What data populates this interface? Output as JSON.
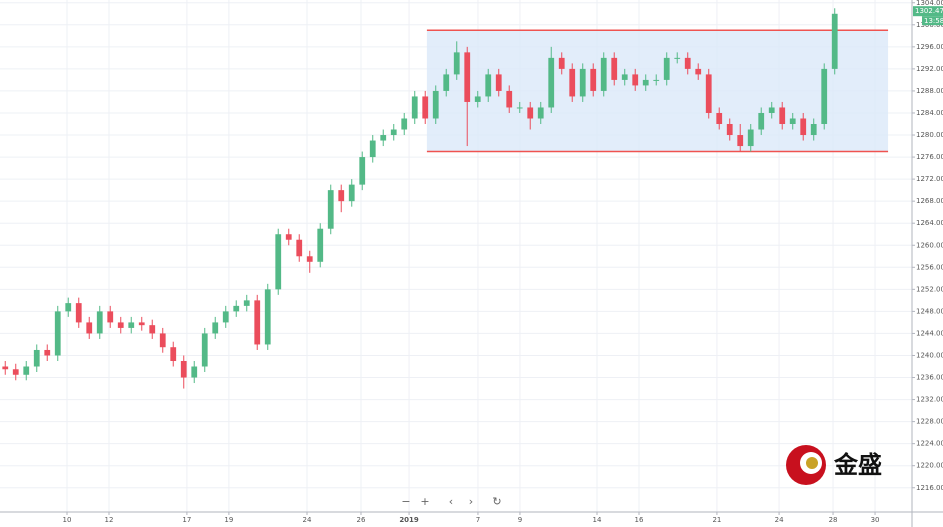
{
  "chart_data": {
    "type": "candlestick",
    "x": [
      0.25,
      0.75,
      1.25,
      1.75,
      2.25,
      2.75,
      3.25,
      3.75,
      4.25,
      4.75,
      5.25,
      5.75,
      6.25,
      6.75,
      7.25,
      7.75,
      8.25,
      8.75,
      9.25,
      9.75,
      10.25,
      10.75,
      11.25,
      11.75,
      12.25,
      12.75,
      13.25,
      13.75,
      14.25,
      14.75,
      15.25,
      15.75,
      16.25,
      16.75,
      17.25,
      17.75,
      18.25,
      18.75,
      19.25,
      19.75,
      20.25,
      20.75,
      21.25,
      21.75,
      22.25,
      22.75,
      23.25,
      23.75,
      24.25,
      24.75,
      25.25,
      25.75,
      26.25,
      26.75,
      27.25,
      27.75,
      28.25,
      28.75,
      29.25,
      29.75,
      30.25,
      30.75,
      31.25,
      31.75,
      32.25,
      32.75,
      33.25,
      33.75,
      34.25,
      34.75,
      35.25,
      35.75,
      36.25,
      36.75,
      37.25,
      37.75,
      38.25,
      38.75,
      39.25,
      39.75
    ],
    "open": [
      1238,
      1237.5,
      1236.5,
      1238,
      1241,
      1240,
      1248,
      1249.5,
      1246,
      1244,
      1248,
      1246,
      1245,
      1246,
      1245.5,
      1244,
      1241.5,
      1239,
      1236,
      1238,
      1244,
      1246,
      1248,
      1249,
      1250,
      1242,
      1252,
      1262,
      1261,
      1258,
      1257,
      1263,
      1270,
      1268,
      1271,
      1276,
      1279,
      1280,
      1281,
      1283,
      1287,
      1283,
      1288,
      1291,
      1295,
      1286,
      1287,
      1291,
      1288,
      1285,
      1285,
      1283,
      1285,
      1294,
      1292,
      1287,
      1292,
      1288,
      1294,
      1290,
      1291,
      1289,
      1290,
      1290,
      1294,
      1294,
      1292,
      1291,
      1284,
      1282,
      1280,
      1278,
      1281,
      1284,
      1285,
      1282,
      1283,
      1280,
      1282,
      1292
    ],
    "high": [
      1239,
      1238.5,
      1239,
      1242,
      1242,
      1249,
      1250.5,
      1250.5,
      1247,
      1249,
      1249,
      1247,
      1247,
      1247,
      1246.5,
      1245,
      1242.5,
      1240,
      1239,
      1245,
      1247,
      1249,
      1250,
      1251,
      1251,
      1253,
      1263,
      1263,
      1262,
      1259,
      1264,
      1271,
      1271,
      1272,
      1277,
      1280,
      1281,
      1282,
      1284,
      1288,
      1288,
      1289,
      1292,
      1297,
      1296,
      1288,
      1292,
      1292,
      1289,
      1286,
      1286,
      1286,
      1296,
      1295,
      1293,
      1293,
      1293,
      1295,
      1295,
      1292,
      1292,
      1291,
      1291,
      1295,
      1295,
      1295,
      1293,
      1292,
      1285,
      1283,
      1282,
      1282,
      1285,
      1286,
      1286,
      1284,
      1284,
      1283,
      1293,
      1303
    ],
    "low": [
      1236.5,
      1235.5,
      1235.5,
      1237,
      1239,
      1239,
      1247,
      1245,
      1243,
      1243,
      1245,
      1244,
      1244,
      1244.5,
      1243,
      1240.5,
      1238,
      1234,
      1235,
      1237,
      1243,
      1245,
      1247,
      1248,
      1241,
      1241,
      1251,
      1260,
      1257,
      1255,
      1256,
      1262,
      1266,
      1267,
      1270,
      1275,
      1278,
      1279,
      1280,
      1282,
      1282,
      1282,
      1287,
      1290,
      1278,
      1285,
      1286,
      1287,
      1284,
      1284,
      1281,
      1282,
      1284,
      1291,
      1286,
      1286,
      1287,
      1287,
      1289,
      1289,
      1288,
      1288,
      1289,
      1289,
      1293,
      1291,
      1290,
      1283,
      1281,
      1279,
      1277,
      1277,
      1280,
      1283,
      1281,
      1281,
      1279,
      1279,
      1281,
      1291
    ],
    "close": [
      1237.5,
      1236.5,
      1238,
      1241,
      1240,
      1248,
      1249.5,
      1246,
      1244,
      1248,
      1246,
      1245,
      1246,
      1245.5,
      1244,
      1241.5,
      1239,
      1236,
      1238,
      1244,
      1246,
      1248,
      1249,
      1250,
      1242,
      1252,
      1262,
      1261,
      1258,
      1257,
      1263,
      1270,
      1268,
      1271,
      1276,
      1279,
      1280,
      1281,
      1283,
      1287,
      1283,
      1288,
      1291,
      1295,
      1286,
      1287,
      1291,
      1288,
      1285,
      1285,
      1283,
      1285,
      1294,
      1292,
      1287,
      1292,
      1288,
      1294,
      1290,
      1291,
      1289,
      1290,
      1290,
      1294,
      1294,
      1292,
      1291,
      1284,
      1282,
      1280,
      1278,
      1281,
      1284,
      1285,
      1282,
      1283,
      1280,
      1282,
      1292,
      1302
    ],
    "up_color": "#53b987",
    "down_color": "#eb4d5c",
    "xlim": [
      0,
      43.43
    ],
    "xticks": [
      {
        "value": 3.19,
        "label": "10"
      },
      {
        "value": 5.19,
        "label": "12"
      },
      {
        "value": 8.9,
        "label": "17"
      },
      {
        "value": 10.9,
        "label": "19"
      },
      {
        "value": 14.62,
        "label": "24"
      },
      {
        "value": 17.19,
        "label": "26"
      },
      {
        "value": 19.48,
        "label": "2019"
      },
      {
        "value": 22.76,
        "label": "7"
      },
      {
        "value": 24.76,
        "label": "9"
      },
      {
        "value": 28.43,
        "label": "14"
      },
      {
        "value": 30.43,
        "label": "16"
      },
      {
        "value": 34.14,
        "label": "21"
      },
      {
        "value": 37.1,
        "label": "24"
      },
      {
        "value": 39.67,
        "label": "28"
      },
      {
        "value": 41.67,
        "label": "30"
      }
    ],
    "ylim": [
      1211.6,
      1304.5
    ],
    "yticks": [
      {
        "value": 1216,
        "label": "1216.00"
      },
      {
        "value": 1220,
        "label": "1220.00"
      },
      {
        "value": 1224,
        "label": "1224.00"
      },
      {
        "value": 1228,
        "label": "1228.00"
      },
      {
        "value": 1232,
        "label": "1232.00"
      },
      {
        "value": 1236,
        "label": "1236.00"
      },
      {
        "value": 1240,
        "label": "1240.00"
      },
      {
        "value": 1244,
        "label": "1244.00"
      },
      {
        "value": 1248,
        "label": "1248.00"
      },
      {
        "value": 1252,
        "label": "1252.00"
      },
      {
        "value": 1256,
        "label": "1256.00"
      },
      {
        "value": 1260,
        "label": "1260.00"
      },
      {
        "value": 1264,
        "label": "1264.00"
      },
      {
        "value": 1268,
        "label": "1268.00"
      },
      {
        "value": 1272,
        "label": "1272.00"
      },
      {
        "value": 1276,
        "label": "1276.00"
      },
      {
        "value": 1280,
        "label": "1280.00"
      },
      {
        "value": 1284,
        "label": "1284.00"
      },
      {
        "value": 1288,
        "label": "1288.00"
      },
      {
        "value": 1292,
        "label": "1292.00"
      },
      {
        "value": 1296,
        "label": "1296.00"
      },
      {
        "value": 1300,
        "label": "1300.00"
      },
      {
        "value": 1304,
        "label": "1304.00"
      }
    ],
    "grid": true,
    "range_box": {
      "x": [
        20.33,
        42.29
      ],
      "y": [
        1277,
        1299
      ],
      "color": "#ef5350"
    },
    "last_price": {
      "value": 1302.47,
      "label": "1302.47"
    },
    "countdown": "13:58",
    "logo": "金盛"
  }
}
